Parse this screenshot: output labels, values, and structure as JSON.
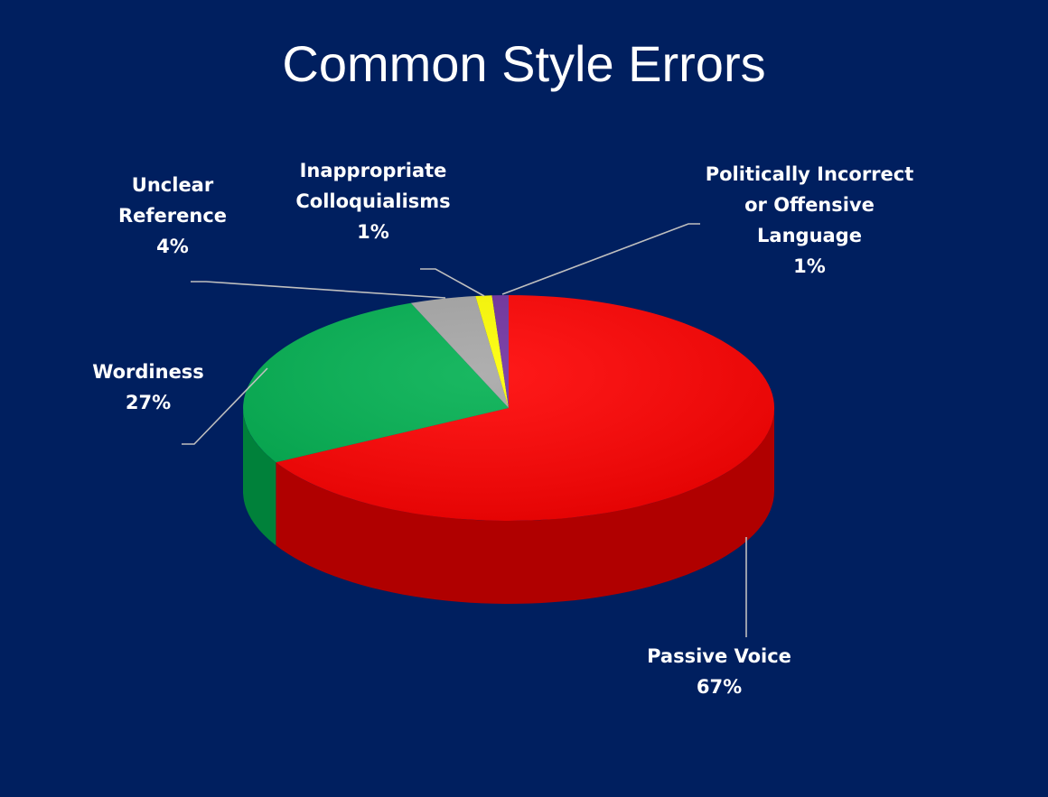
{
  "chart_data": {
    "type": "pie",
    "title": "Common Style Errors",
    "slices": [
      {
        "label_lines": [
          "Passive Voice"
        ],
        "percent_label": "67%",
        "value": 67,
        "color": "#ff0000",
        "side_color": "#b00000"
      },
      {
        "label_lines": [
          "Wordiness"
        ],
        "percent_label": "27%",
        "value": 27,
        "color": "#00b050",
        "side_color": "#00813a"
      },
      {
        "label_lines": [
          "Unclear",
          "Reference"
        ],
        "percent_label": "4%",
        "value": 4,
        "color": "#a6a6a6",
        "side_color": "#7a7a7a"
      },
      {
        "label_lines": [
          "Inappropriate",
          "Colloquialisms"
        ],
        "percent_label": "1%",
        "value": 1,
        "color": "#ffff00",
        "side_color": "#c8c800"
      },
      {
        "label_lines": [
          "Politically Incorrect",
          "or Offensive",
          "Language"
        ],
        "percent_label": "1%",
        "value": 1,
        "color": "#7030a0",
        "side_color": "#4f1f75"
      }
    ],
    "legend": "none",
    "data_labels": "outside with leader lines"
  }
}
